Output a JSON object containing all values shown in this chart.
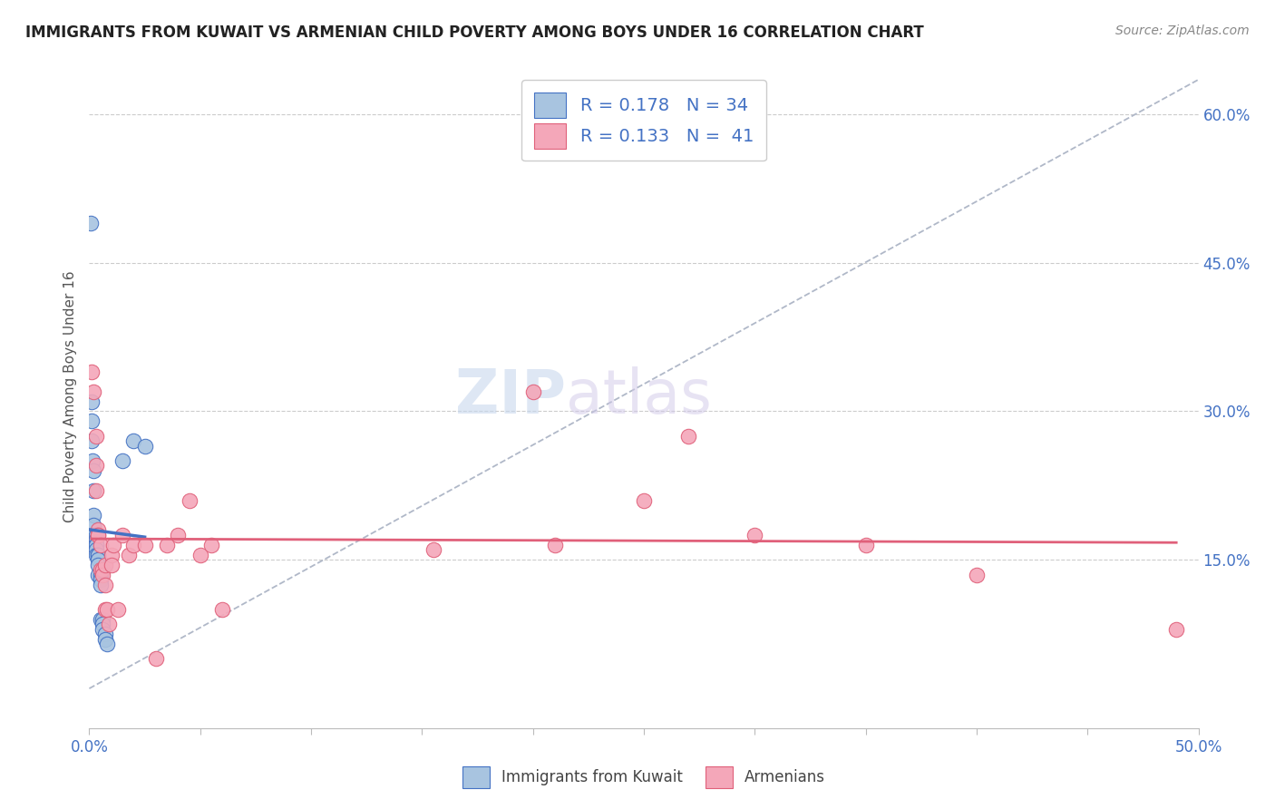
{
  "title": "IMMIGRANTS FROM KUWAIT VS ARMENIAN CHILD POVERTY AMONG BOYS UNDER 16 CORRELATION CHART",
  "source": "Source: ZipAtlas.com",
  "ylabel": "Child Poverty Among Boys Under 16",
  "right_yticks": [
    "15.0%",
    "30.0%",
    "45.0%",
    "60.0%"
  ],
  "right_ytick_vals": [
    0.15,
    0.3,
    0.45,
    0.6
  ],
  "xlim": [
    0.0,
    0.5
  ],
  "ylim": [
    -0.02,
    0.65
  ],
  "legend1_R": "0.178",
  "legend1_N": "34",
  "legend2_R": "0.133",
  "legend2_N": "41",
  "legend_label1": "Immigrants from Kuwait",
  "legend_label2": "Armenians",
  "kuwait_color": "#a8c4e0",
  "armenian_color": "#f4a7b9",
  "kuwait_line_color": "#4472c4",
  "armenian_line_color": "#e0607a",
  "trendline_color": "#b0b8c8",
  "background_color": "#ffffff",
  "kuwait_x": [
    0.0005,
    0.001,
    0.001,
    0.001,
    0.0015,
    0.002,
    0.002,
    0.002,
    0.002,
    0.002,
    0.003,
    0.003,
    0.003,
    0.003,
    0.003,
    0.003,
    0.004,
    0.004,
    0.004,
    0.004,
    0.004,
    0.005,
    0.005,
    0.005,
    0.005,
    0.006,
    0.006,
    0.006,
    0.007,
    0.007,
    0.008,
    0.015,
    0.02,
    0.025
  ],
  "kuwait_y": [
    0.49,
    0.31,
    0.29,
    0.27,
    0.25,
    0.24,
    0.22,
    0.195,
    0.185,
    0.175,
    0.175,
    0.17,
    0.165,
    0.165,
    0.16,
    0.155,
    0.155,
    0.155,
    0.15,
    0.145,
    0.135,
    0.135,
    0.13,
    0.125,
    0.09,
    0.09,
    0.085,
    0.08,
    0.075,
    0.07,
    0.065,
    0.25,
    0.27,
    0.265
  ],
  "armenian_x": [
    0.001,
    0.002,
    0.003,
    0.003,
    0.003,
    0.004,
    0.004,
    0.004,
    0.005,
    0.005,
    0.006,
    0.006,
    0.007,
    0.007,
    0.007,
    0.008,
    0.009,
    0.01,
    0.01,
    0.011,
    0.013,
    0.015,
    0.018,
    0.02,
    0.025,
    0.03,
    0.035,
    0.04,
    0.045,
    0.05,
    0.055,
    0.06,
    0.155,
    0.2,
    0.21,
    0.25,
    0.27,
    0.3,
    0.35,
    0.4,
    0.49
  ],
  "armenian_y": [
    0.34,
    0.32,
    0.275,
    0.245,
    0.22,
    0.18,
    0.175,
    0.175,
    0.165,
    0.14,
    0.14,
    0.135,
    0.125,
    0.1,
    0.145,
    0.1,
    0.085,
    0.155,
    0.145,
    0.165,
    0.1,
    0.175,
    0.155,
    0.165,
    0.165,
    0.05,
    0.165,
    0.175,
    0.21,
    0.155,
    0.165,
    0.1,
    0.16,
    0.32,
    0.165,
    0.21,
    0.275,
    0.175,
    0.165,
    0.135,
    0.08
  ],
  "trendline_x0": 0.0,
  "trendline_x1": 0.5,
  "trendline_y0": 0.02,
  "trendline_y1": 0.635
}
